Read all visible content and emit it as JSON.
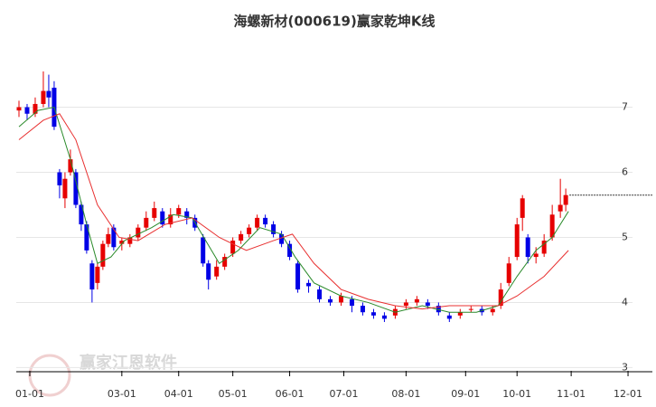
{
  "chart_data": {
    "type": "candlestick",
    "title": "海螺新材(000619)赢家乾坤K线",
    "watermark": "赢家江恩软件",
    "up_color": "#e60000",
    "down_color": "#0000e6",
    "grid": true,
    "last_close_line": true,
    "xlim": [
      0,
      235
    ],
    "ylim": [
      2.95,
      8.3
    ],
    "xticks": [
      {
        "value": 5,
        "label": "01-01"
      },
      {
        "value": 39,
        "label": "03-01"
      },
      {
        "value": 60,
        "label": "04-01"
      },
      {
        "value": 80,
        "label": "05-01"
      },
      {
        "value": 101,
        "label": "06-01"
      },
      {
        "value": 121,
        "label": "07-01"
      },
      {
        "value": 144,
        "label": "08-01"
      },
      {
        "value": 166,
        "label": "09-01"
      },
      {
        "value": 185,
        "label": "10-01"
      },
      {
        "value": 205,
        "label": "11-01"
      },
      {
        "value": 226,
        "label": "12-01"
      }
    ],
    "yticks": [
      3,
      4,
      5,
      6,
      7
    ],
    "x": [
      1,
      4,
      7,
      10,
      12,
      14,
      16,
      18,
      20,
      22,
      24,
      26,
      28,
      30,
      32,
      34,
      36,
      39,
      42,
      45,
      48,
      51,
      54,
      57,
      60,
      63,
      66,
      69,
      71,
      74,
      77,
      80,
      83,
      86,
      89,
      92,
      95,
      98,
      101,
      104,
      108,
      112,
      116,
      120,
      124,
      128,
      132,
      136,
      140,
      144,
      148,
      152,
      156,
      160,
      164,
      168,
      172,
      176,
      179,
      182,
      185,
      187,
      189,
      192,
      195,
      198,
      201,
      203
    ],
    "open": [
      6.95,
      7.0,
      6.9,
      7.05,
      7.25,
      7.3,
      6.0,
      5.6,
      6.0,
      6.0,
      5.5,
      5.2,
      4.6,
      4.3,
      4.55,
      4.9,
      5.15,
      4.9,
      4.9,
      5.0,
      5.15,
      5.3,
      5.4,
      5.2,
      5.35,
      5.4,
      5.3,
      5.0,
      4.6,
      4.4,
      4.55,
      4.75,
      4.95,
      5.05,
      5.15,
      5.3,
      5.2,
      5.05,
      4.9,
      4.6,
      4.3,
      4.2,
      4.05,
      4.0,
      4.05,
      3.95,
      3.85,
      3.8,
      3.8,
      3.95,
      4.0,
      4.0,
      3.95,
      3.8,
      3.8,
      3.9,
      3.9,
      3.85,
      3.95,
      4.3,
      4.7,
      5.3,
      5.0,
      4.7,
      4.75,
      5.0,
      5.4,
      5.5
    ],
    "close": [
      7.0,
      6.9,
      7.05,
      7.25,
      7.15,
      6.7,
      5.8,
      5.9,
      6.2,
      5.5,
      5.2,
      4.8,
      4.2,
      4.55,
      4.9,
      5.05,
      4.85,
      4.95,
      5.0,
      5.15,
      5.3,
      5.45,
      5.2,
      5.35,
      5.45,
      5.3,
      5.15,
      4.6,
      4.35,
      4.55,
      4.7,
      4.95,
      5.05,
      5.15,
      5.3,
      5.2,
      5.05,
      4.9,
      4.7,
      4.2,
      4.25,
      4.05,
      4.0,
      4.1,
      3.95,
      3.85,
      3.8,
      3.75,
      3.9,
      4.0,
      4.05,
      3.95,
      3.85,
      3.75,
      3.85,
      3.9,
      3.85,
      3.9,
      4.2,
      4.6,
      5.2,
      5.6,
      4.7,
      4.75,
      4.95,
      5.35,
      5.5,
      5.65
    ],
    "high": [
      7.1,
      7.05,
      7.15,
      7.55,
      7.5,
      7.4,
      6.05,
      6.0,
      6.35,
      6.05,
      5.55,
      5.25,
      4.65,
      4.6,
      4.95,
      5.15,
      5.2,
      5.0,
      5.05,
      5.2,
      5.4,
      5.55,
      5.45,
      5.45,
      5.5,
      5.45,
      5.35,
      5.05,
      4.65,
      4.65,
      4.75,
      5.0,
      5.1,
      5.2,
      5.35,
      5.35,
      5.25,
      5.1,
      4.95,
      4.65,
      4.35,
      4.25,
      4.1,
      4.15,
      4.1,
      4.0,
      3.9,
      3.85,
      3.95,
      4.05,
      4.1,
      4.05,
      4.0,
      3.85,
      3.9,
      3.95,
      3.95,
      3.95,
      4.3,
      4.7,
      5.3,
      5.65,
      5.05,
      4.85,
      5.05,
      5.5,
      5.9,
      5.75
    ],
    "low": [
      6.85,
      6.8,
      6.85,
      7.0,
      7.0,
      6.65,
      5.6,
      5.45,
      5.95,
      5.45,
      5.1,
      4.75,
      4.0,
      4.2,
      4.5,
      4.85,
      4.8,
      4.8,
      4.85,
      4.95,
      5.1,
      5.25,
      5.15,
      5.15,
      5.3,
      5.2,
      5.1,
      4.55,
      4.2,
      4.35,
      4.5,
      4.7,
      4.9,
      5.0,
      5.1,
      5.15,
      5.0,
      4.85,
      4.65,
      4.15,
      4.15,
      4.0,
      3.95,
      3.95,
      3.85,
      3.8,
      3.75,
      3.7,
      3.75,
      3.9,
      3.95,
      3.9,
      3.8,
      3.7,
      3.75,
      3.85,
      3.8,
      3.8,
      3.9,
      4.25,
      4.65,
      5.1,
      4.6,
      4.6,
      4.7,
      4.95,
      5.3,
      5.4
    ],
    "lines": [
      {
        "color": "#2a8a2a",
        "x": [
          1,
          8,
          14,
          20,
          26,
          30,
          35,
          40,
          50,
          58,
          65,
          70,
          75,
          82,
          90,
          98,
          103,
          110,
          120,
          130,
          140,
          150,
          160,
          170,
          178,
          185,
          192,
          198,
          204
        ],
        "values": [
          6.7,
          6.95,
          7.0,
          6.2,
          5.2,
          4.6,
          4.7,
          4.95,
          5.15,
          5.35,
          5.3,
          4.95,
          4.6,
          4.8,
          5.15,
          5.05,
          4.7,
          4.3,
          4.1,
          4.0,
          3.85,
          3.95,
          3.85,
          3.85,
          3.95,
          4.4,
          4.8,
          5.0,
          5.4
        ]
      },
      {
        "color": "#e83030",
        "x": [
          1,
          10,
          16,
          22,
          30,
          38,
          45,
          55,
          65,
          75,
          85,
          95,
          102,
          110,
          120,
          130,
          140,
          150,
          160,
          170,
          178,
          185,
          195,
          204
        ],
        "values": [
          6.5,
          6.8,
          6.9,
          6.5,
          5.5,
          5.0,
          4.95,
          5.2,
          5.3,
          5.0,
          4.8,
          4.95,
          5.05,
          4.6,
          4.2,
          4.05,
          3.95,
          3.9,
          3.95,
          3.95,
          3.95,
          4.1,
          4.4,
          4.8
        ]
      }
    ]
  }
}
